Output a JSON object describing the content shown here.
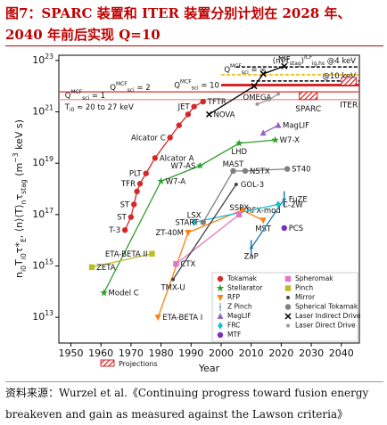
{
  "chart_data": {
    "type": "scatter",
    "title": "图7：SPARC 装置和 ITER 装置分别计划在 2028 年、2040 年前后实现 Q=10",
    "source": "资料来源：Wurzel et al.《Continuing progress toward fusion energy breakeven and gain as measured against the Lawson criteria》",
    "x_label": "Year",
    "y_label": "n_{i0}T_{i0}τ*_{E}, ⟨n⟩⟨T⟩_{n}τ_{stag} (m^{−3} keV s)",
    "xlim": [
      1946,
      2046
    ],
    "xticks": [
      1950,
      1960,
      1970,
      1980,
      1990,
      2000,
      2010,
      2020,
      2030,
      2040
    ],
    "ylim": [
      1000000000000.0,
      1.6e+23
    ],
    "log_y": true,
    "yticks": [
      {
        "value": 10000000000000.0,
        "label": "10^{13}"
      },
      {
        "value": 1000000000000000.0,
        "label": "10^{15}"
      },
      {
        "value": 1e+17,
        "label": "10^{17}"
      },
      {
        "value": 1e+19,
        "label": "10^{19}"
      },
      {
        "value": 1e+21,
        "label": "10^{21}"
      },
      {
        "value": 1e+23,
        "label": "10^{23}"
      }
    ],
    "legend": "lower right",
    "series": [
      {
        "name": "Tokamak",
        "color": "#d62728",
        "marker": "circle",
        "line": true,
        "x": [
          1968,
          1970,
          1971,
          1972,
          1973,
          1975,
          1978,
          1983,
          1986,
          1989,
          1991,
          1994
        ],
        "values": [
          2.5e+16,
          8e+16,
          2.5e+17,
          8e+17,
          1.6e+18,
          4e+18,
          1.6e+19,
          1e+20,
          3e+20,
          8e+20,
          1.6e+21,
          2.5e+21
        ],
        "labels": [
          "T-3",
          "ST",
          "ST",
          null,
          "TFR",
          "PLT",
          "Alcator A",
          "Alcator C",
          null,
          null,
          "JET",
          "TFTR"
        ]
      },
      {
        "name": "Stellarator",
        "color": "#2ca02c",
        "marker": "star",
        "line": true,
        "x": [
          1961,
          1980,
          1993,
          2006,
          2018
        ],
        "values": [
          90000000000000.0,
          2e+18,
          8e+18,
          6e+19,
          8e+19
        ],
        "labels": [
          "Model C",
          "W7-A",
          "W7-AS",
          "LHD",
          "W7-X"
        ]
      },
      {
        "name": "RFP",
        "color": "#ff7f0e",
        "marker": "tri-down",
        "line": true,
        "x": [
          1979,
          1989,
          2007,
          2014
        ],
        "values": [
          10000000000000.0,
          2e+16,
          1.5e+17,
          6e+16
        ],
        "labels": [
          "ETA-BETA I",
          "ZT-40M",
          "RFX-mod",
          "MST"
        ]
      },
      {
        "name": "Z Pinch",
        "color": "#1f77b4",
        "marker": "bar",
        "line": true,
        "x": [
          2010,
          2021
        ],
        "values": [
          5000000000000000.0,
          4e+17
        ],
        "labels": [
          "ZaP",
          "FuZE"
        ]
      },
      {
        "name": "MagLIF",
        "color": "#9467bd",
        "marker": "tri-up",
        "line": true,
        "x": [
          2014,
          2019
        ],
        "values": [
          1.5e+20,
          3e+20
        ],
        "labels": [
          null,
          "MagLIF"
        ]
      },
      {
        "name": "FRC",
        "color": "#17becf",
        "marker": "diamond",
        "line": true,
        "x": [
          1991,
          2019
        ],
        "values": [
          5e+16,
          2.5e+17
        ],
        "labels": [
          "LSX",
          "C-2W"
        ]
      },
      {
        "name": "MTF",
        "color": "#7b2fbe",
        "marker": "circle",
        "line": false,
        "x": [
          2021
        ],
        "values": [
          3e+16
        ],
        "labels": [
          "PCS"
        ]
      },
      {
        "name": "Spheromak",
        "color": "#e377c2",
        "marker": "square",
        "line": true,
        "x": [
          1985,
          2006
        ],
        "values": [
          1200000000000000.0,
          1e+17
        ],
        "labels": [
          "CTX",
          "SSPX"
        ]
      },
      {
        "name": "Pinch",
        "color": "#bcbd22",
        "marker": "square",
        "line": true,
        "x": [
          1957,
          1977
        ],
        "values": [
          900000000000000.0,
          3000000000000000.0
        ],
        "labels": [
          "ZETA",
          "ETA-BETA II"
        ]
      },
      {
        "name": "Mirror",
        "color": "#444444",
        "marker": "dot",
        "line": true,
        "x": [
          1984,
          2005
        ],
        "values": [
          300000000000000.0,
          1.5e+18
        ],
        "labels": [
          "TMX-U",
          "GOL-3"
        ]
      },
      {
        "name": "Spherical Tokamak",
        "color": "#7f7f7f",
        "marker": "circle",
        "line": true,
        "x": [
          1994,
          2004,
          2008,
          2022
        ],
        "values": [
          5e+16,
          5e+18,
          5e+18,
          6e+18
        ],
        "labels": [
          "START",
          "MAST",
          "NSTX",
          "ST40"
        ]
      },
      {
        "name": "Laser Indirect Drive",
        "color": "#000000",
        "marker": "x",
        "line": true,
        "x": [
          1996,
          2011,
          2014,
          2021
        ],
        "values": [
          8e+20,
          1e+22,
          3e+22,
          6e+22
        ],
        "labels": [
          "NOVA",
          null,
          null,
          "NIF"
        ]
      },
      {
        "name": "Laser Direct Drive",
        "color": "#999999",
        "marker": "dot",
        "line": true,
        "x": [
          2012,
          2016,
          2019
        ],
        "values": [
          2e+21,
          3e+21,
          5e+21
        ],
        "labels": [
          "OMEGA",
          null,
          null
        ]
      }
    ],
    "reference_lines": [
      {
        "label": "Q^{MCF}_{sci} = ∞",
        "value": 2.8e+22,
        "color": "#e8b800",
        "from": 2000,
        "dashed": true
      },
      {
        "label": "Q^{MCF}_{sci} = 10",
        "value": 1.1e+22,
        "color": "#d62728",
        "from": 2000,
        "dashed": false
      },
      {
        "label": "Q^{MCF}_{sci} = 2",
        "value": 6e+21,
        "color": "#e05050",
        "from": 1946,
        "dashed": false
      },
      {
        "label": "Q^{MCF}_{sci} = 1",
        "value": 3e+21,
        "color": "#f4a0a0",
        "from": 1946,
        "dashed": false
      },
      {
        "label": "(nTτ_{stag})^{ICF}_{ig,hs} @4 keV",
        "value": 5.6e+22,
        "color": "#000000",
        "from": 2005,
        "dashed": true
      },
      {
        "label": "@10 keV",
        "value": 1.6e+22,
        "color": "#000000",
        "from": 2010,
        "dashed": true
      }
    ],
    "temperature_note": "T_{i0} ≈ 20 to 27 keV",
    "projections": [
      {
        "label": "SPARC",
        "x": [
          2026,
          2032
        ],
        "values": [
          3e+21,
          6e+21
        ]
      },
      {
        "label": "ITER",
        "x": [
          2040,
          2045
        ],
        "values": [
          1.1e+22,
          2.2e+22
        ]
      }
    ],
    "projections_label": "Projections"
  }
}
